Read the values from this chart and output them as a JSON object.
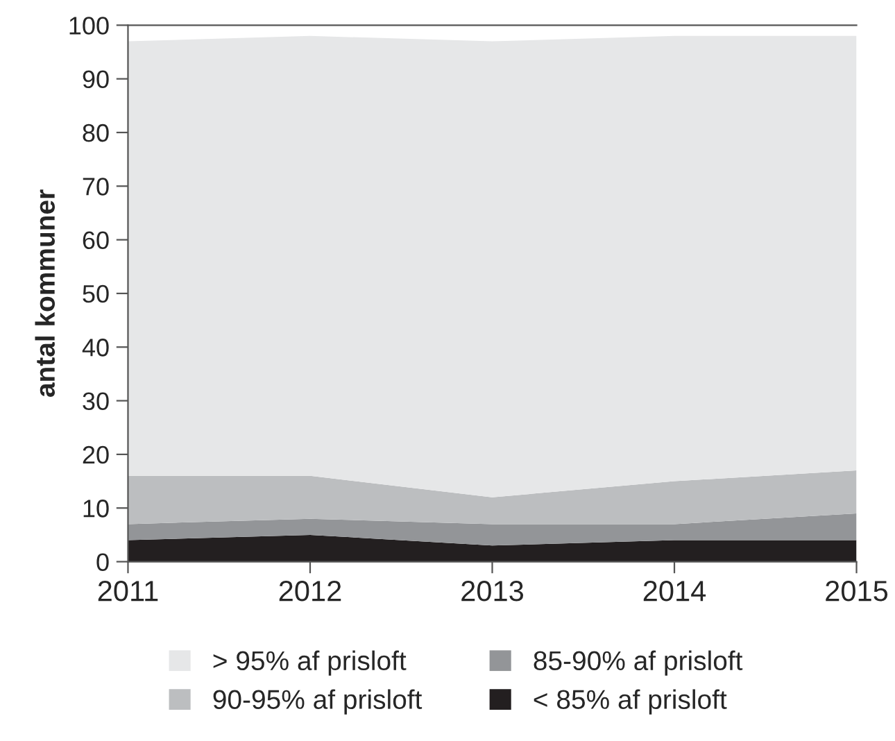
{
  "chart_data": {
    "type": "area",
    "stacked": true,
    "ylabel": "antal kommuner",
    "x": [
      2011,
      2012,
      2013,
      2014,
      2015
    ],
    "series": [
      {
        "name": "< 85% af prisloft",
        "color": "#231f20",
        "values": [
          4,
          5,
          3,
          4,
          4
        ]
      },
      {
        "name": "85-90% af prisloft",
        "color": "#939598",
        "values": [
          3,
          3,
          4,
          3,
          5
        ]
      },
      {
        "name": "90-95% af prisloft",
        "color": "#bcbec0",
        "values": [
          9,
          8,
          5,
          8,
          8
        ]
      },
      {
        "name": "> 95% af prisloft",
        "color": "#e6e7e8",
        "values": [
          81,
          82,
          85,
          83,
          81
        ]
      }
    ],
    "xlim": [
      2011,
      2015
    ],
    "xticks": [
      2011,
      2012,
      2013,
      2014,
      2015
    ],
    "ylim": [
      0,
      100
    ],
    "yticks": [
      0,
      10,
      20,
      30,
      40,
      50,
      60,
      70,
      80,
      90,
      100
    ],
    "grid": false,
    "legend": "bottom"
  }
}
